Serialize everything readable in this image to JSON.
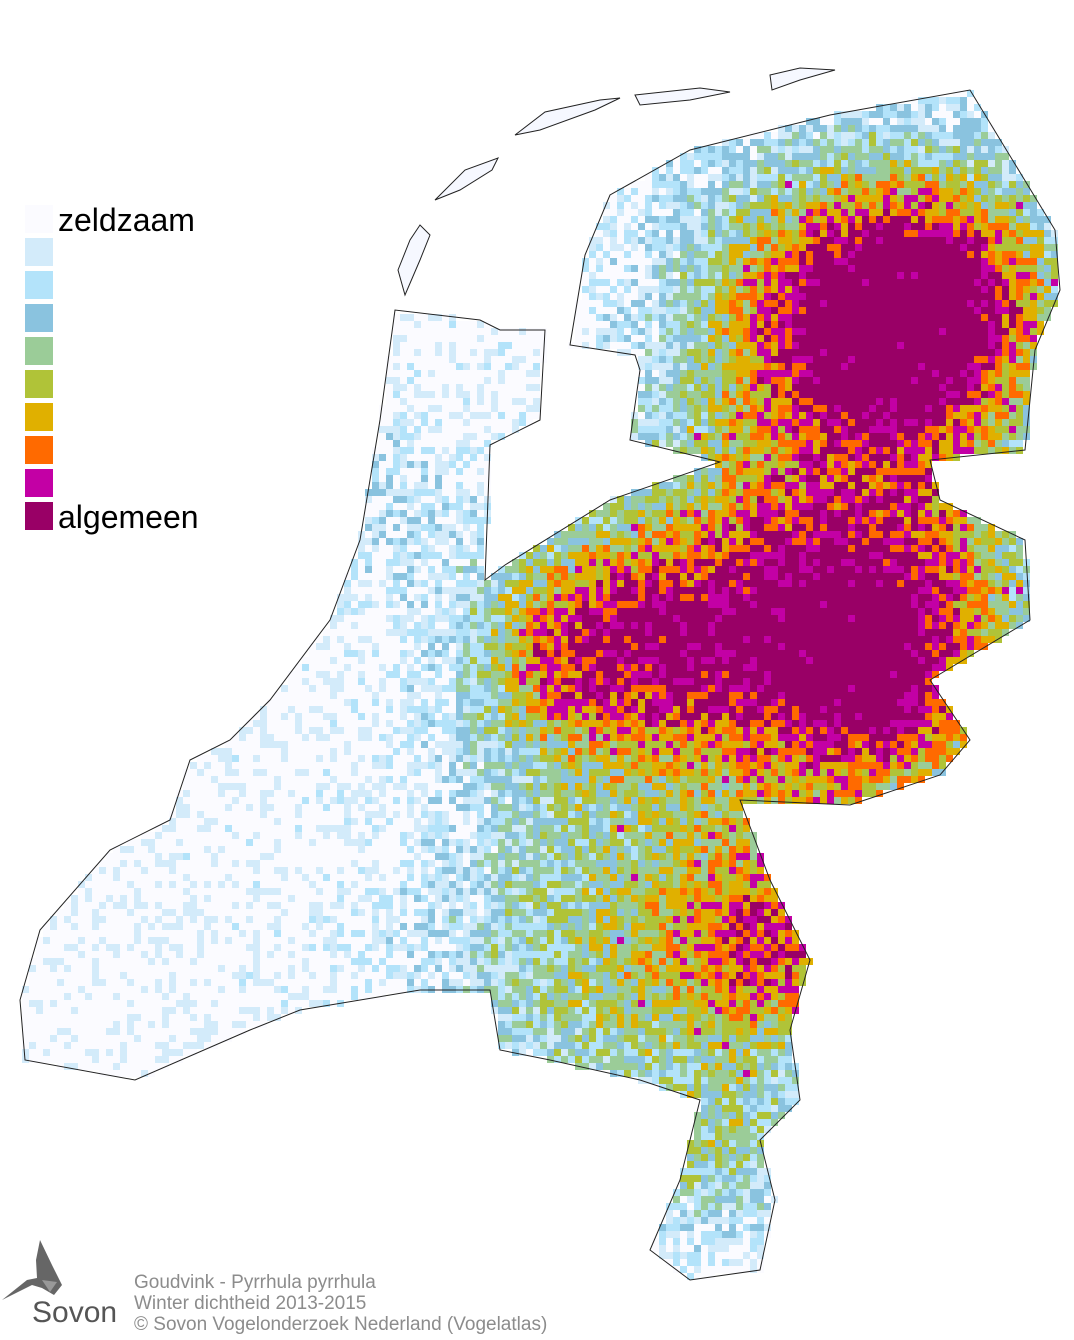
{
  "legend": {
    "min_label": "zeldzaam",
    "max_label": "algemeen",
    "colors": [
      "#fbfbff",
      "#d3ebfa",
      "#b3e3fa",
      "#8ac3df",
      "#9bcc98",
      "#b0c338",
      "#e0b000",
      "#ff6a00",
      "#c300a5",
      "#990066"
    ]
  },
  "footer": {
    "species": "Goudvink - Pyrrhula pyrrhula",
    "subtitle": "Winter dichtheid 2013-2015",
    "copyright": "© Sovon Vogelonderzoek Nederland (Vogelatlas)"
  },
  "logo": {
    "text": "Sovon",
    "icon": "swallow-icon"
  }
}
